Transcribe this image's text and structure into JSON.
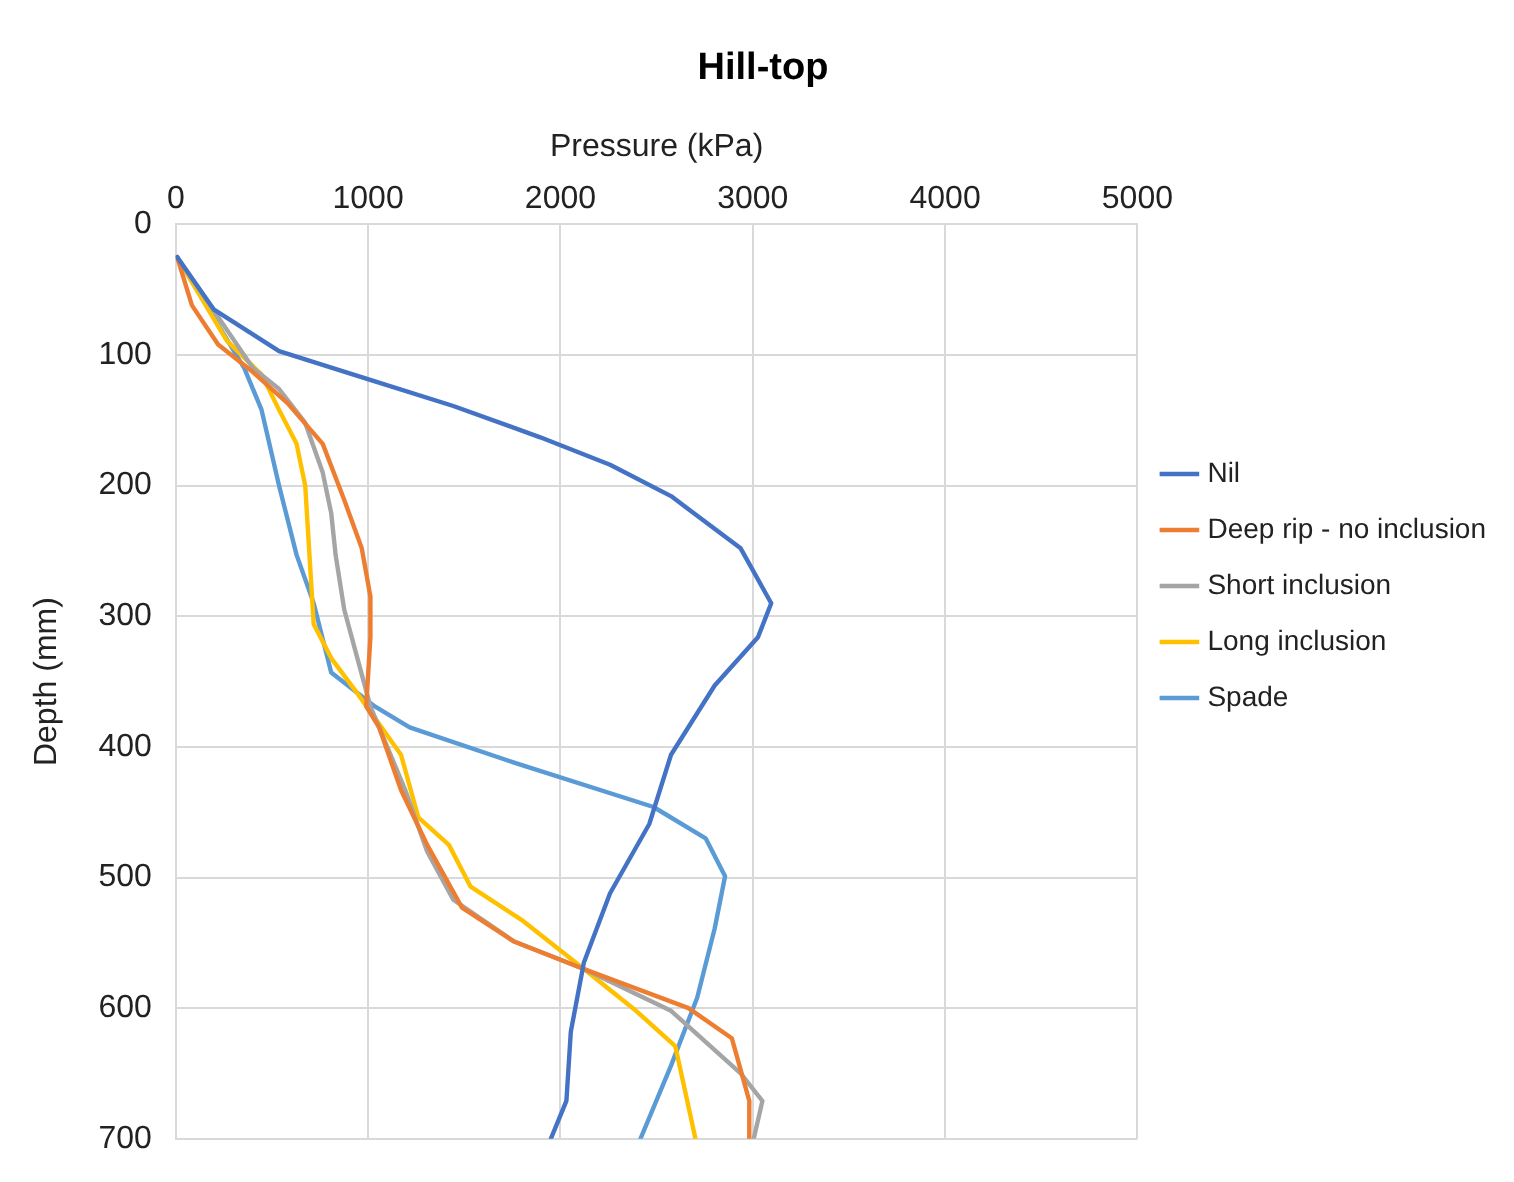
{
  "chart_data": {
    "type": "line",
    "title": "Hill-top",
    "xlabel": "Pressure (kPa)",
    "ylabel": "Depth (mm)",
    "xlim": [
      0,
      5000
    ],
    "xticks": [
      0,
      1000,
      2000,
      3000,
      4000,
      5000
    ],
    "ylim": [
      700,
      0
    ],
    "yticks": [
      0,
      100,
      200,
      300,
      400,
      500,
      600,
      700
    ],
    "grid": true,
    "legend": "right",
    "marker": "none",
    "line_style": "solid",
    "series": [
      {
        "name": "Nil",
        "color": "#4472c4",
        "x": [
          7,
          197,
          537,
          990,
          1443,
          1895,
          2258,
          2575,
          2937,
          3096,
          3027,
          2802,
          2575,
          2462,
          2258,
          2122,
          2054,
          2031,
          1950
        ],
        "values": [
          25,
          65,
          97,
          118,
          139,
          163,
          184,
          208,
          248,
          290,
          316,
          353,
          406,
          459,
          512,
          565,
          618,
          671,
          700
        ]
      },
      {
        "name": "Deep rip - no inclusion",
        "color": "#ed7d31",
        "x": [
          7,
          84,
          220,
          401,
          582,
          764,
          876,
          967,
          1012,
          1012,
          990,
          1057,
          1171,
          1307,
          1488,
          1759,
          2122,
          2666,
          2891,
          2982,
          2982
        ],
        "values": [
          25,
          62,
          92,
          113,
          137,
          168,
          211,
          248,
          285,
          316,
          369,
          385,
          433,
          475,
          523,
          549,
          570,
          600,
          623,
          671,
          700
        ]
      },
      {
        "name": "Short inclusion",
        "color": "#a5a5a5",
        "x": [
          7,
          401,
          537,
          673,
          764,
          808,
          831,
          876,
          944,
          1012,
          1193,
          1307,
          1443,
          1759,
          2122,
          2575,
          2937,
          3050,
          3005
        ],
        "values": [
          25,
          110,
          126,
          152,
          190,
          221,
          253,
          295,
          332,
          369,
          433,
          480,
          517,
          549,
          570,
          602,
          650,
          671,
          700
        ]
      },
      {
        "name": "Long inclusion",
        "color": "#ffc000",
        "x": [
          7,
          265,
          446,
          537,
          628,
          673,
          695,
          717,
          808,
          944,
          1171,
          1261,
          1420,
          1533,
          1804,
          2122,
          2393,
          2597,
          2643,
          2702
        ],
        "values": [
          25,
          89,
          115,
          142,
          168,
          200,
          253,
          306,
          332,
          359,
          406,
          454,
          475,
          507,
          533,
          570,
          602,
          629,
          660,
          700
        ]
      },
      {
        "name": "Spade",
        "color": "#5b9bd5",
        "x": [
          7,
          356,
          446,
          537,
          628,
          717,
          808,
          1035,
          1216,
          1759,
          2484,
          2755,
          2856,
          2802,
          2711,
          2575,
          2416
        ],
        "values": [
          25,
          110,
          142,
          200,
          253,
          290,
          343,
          369,
          385,
          412,
          446,
          470,
          499,
          539,
          592,
          644,
          700
        ]
      }
    ]
  }
}
